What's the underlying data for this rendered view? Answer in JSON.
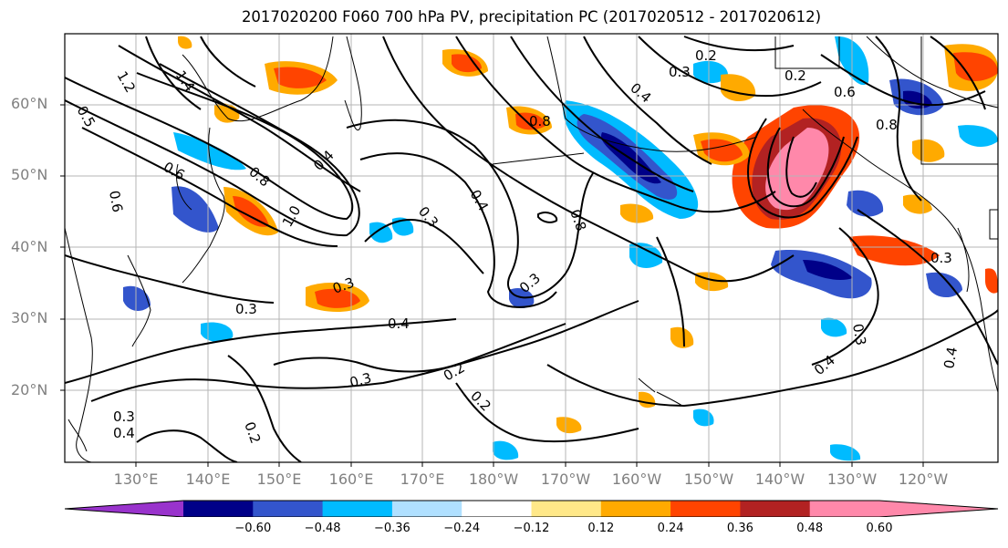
{
  "title": "2017020200 F060 700 hPa PV, precipitation PC (2017020512 - 2017020612)",
  "lat_labels": [
    "60°N",
    "50°N",
    "40°N",
    "30°N",
    "20°N"
  ],
  "lon_labels": [
    "130°E",
    "140°E",
    "150°E",
    "160°E",
    "170°E",
    "180°W",
    "170°W",
    "160°W",
    "150°W",
    "140°W",
    "130°W",
    "120°W"
  ],
  "contour_labels": [
    "1.2",
    "1.4",
    "0.5",
    "0.6",
    "0.6",
    "0.8",
    "1.0",
    "0.4",
    "0.3",
    "0.3",
    "0.4",
    "0.3",
    "0.2",
    "0.2",
    "0.3",
    "0.8",
    "0.8",
    "0.4",
    "0.3",
    "0.2",
    "0.3",
    "0.6",
    "0.8",
    "0.2",
    "0.3",
    "0.4",
    "0.3",
    "0.4",
    "0.4",
    "0.2",
    "0.3",
    "0.4"
  ],
  "colorbar": {
    "colors": [
      "#9933cc",
      "#000088",
      "#3355cc",
      "#00bbff",
      "#b0e0ff",
      "#ffffff",
      "#ffe888",
      "#ffaa00",
      "#ff4400",
      "#b22222",
      "#ff88aa",
      "#ff88aa"
    ],
    "tick_labels": [
      "−0.60",
      "−0.48",
      "−0.36",
      "−0.24",
      "−0.12",
      "0.12",
      "0.24",
      "0.36",
      "0.48",
      "0.60"
    ]
  }
}
